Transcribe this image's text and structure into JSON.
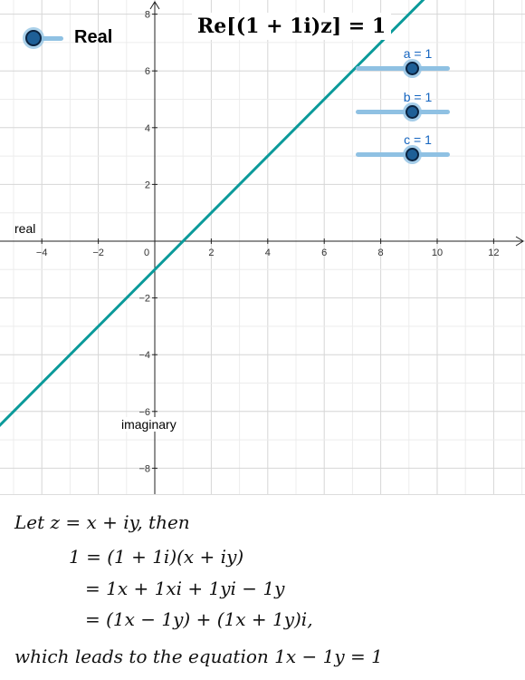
{
  "legend": {
    "label": "Real"
  },
  "equation_title": "Re[(1 + 1i)z] = 1",
  "sliders": [
    {
      "label": "a = 1"
    },
    {
      "label": "b = 1"
    },
    {
      "label": "c = 1"
    }
  ],
  "axis_names": {
    "real": "real",
    "imaginary": "imaginary"
  },
  "chart_data": {
    "type": "line",
    "xlim": [
      -5.5,
      13
    ],
    "ylim": [
      -8.8,
      8.5
    ],
    "x_ticks": [
      -4,
      -2,
      0,
      2,
      4,
      6,
      8,
      10,
      12
    ],
    "x_tick_labels": [
      "−4",
      "−2",
      "0",
      "2",
      "4",
      "6",
      "8",
      "10",
      "12"
    ],
    "y_ticks": [
      -8,
      -6,
      -4,
      -2,
      2,
      4,
      6,
      8
    ],
    "y_tick_labels": [
      "−8",
      "−6",
      "−4",
      "−2",
      "2",
      "4",
      "6",
      "8"
    ],
    "grid": true,
    "line_color": "#0b9a9a",
    "series": [
      {
        "x": [
          -6,
          13
        ],
        "y": [
          -7,
          12
        ]
      }
    ]
  },
  "derivation": {
    "line1": "Let z = x + iy, then",
    "line2": "1 = (1 + 1i)(x + iy)",
    "line3": "= 1x + 1xi + 1yi − 1y",
    "line4": "= (1x − 1y) + (1x + 1y)i,",
    "line5": "which leads to the equation 1x − 1y = 1"
  }
}
